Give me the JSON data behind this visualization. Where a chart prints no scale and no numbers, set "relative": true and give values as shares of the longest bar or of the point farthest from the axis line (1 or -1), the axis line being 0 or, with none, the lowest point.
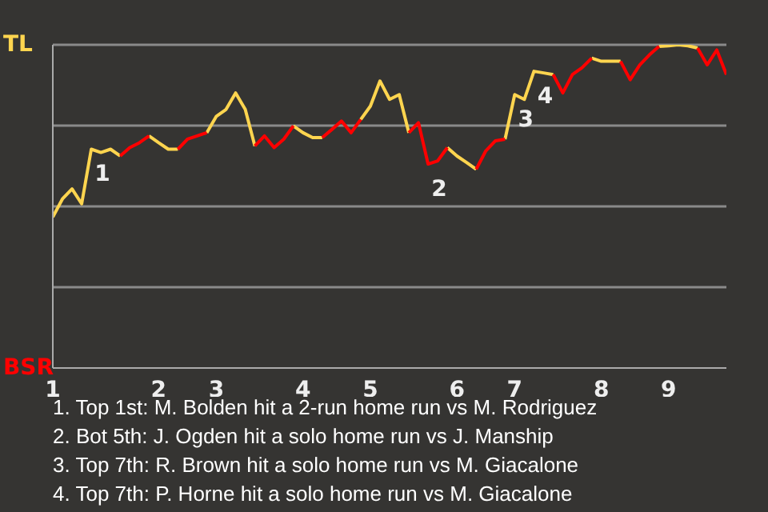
{
  "chart_data": {
    "type": "line",
    "relative": true,
    "categories": [
      "1",
      null,
      null,
      null,
      null,
      null,
      null,
      null,
      null,
      null,
      null,
      "2",
      null,
      null,
      null,
      null,
      null,
      "3",
      null,
      null,
      null,
      null,
      null,
      null,
      null,
      null,
      "4",
      null,
      null,
      null,
      null,
      null,
      null,
      "5",
      null,
      null,
      null,
      null,
      null,
      null,
      null,
      null,
      "6",
      null,
      null,
      null,
      null,
      null,
      "7",
      null,
      null,
      null,
      null,
      null,
      null,
      null,
      null,
      "8",
      null,
      null,
      null,
      null,
      null,
      null,
      "9",
      null,
      null,
      null,
      null,
      null,
      null
    ],
    "series": [
      {
        "name": "TL",
        "color": "#ffd54f",
        "values": [
          0.467,
          0.523,
          0.554,
          0.508,
          0.677,
          0.667,
          0.677,
          0.656,
          null,
          null,
          0.718,
          0.697,
          0.677,
          0.677,
          null,
          null,
          0.728,
          0.779,
          0.8,
          0.851,
          0.8,
          0.687,
          null,
          null,
          null,
          0.749,
          0.728,
          0.713,
          0.713,
          null,
          null,
          null,
          0.769,
          0.81,
          0.888,
          0.831,
          0.846,
          0.728,
          null,
          null,
          null,
          0.682,
          0.656,
          0.636,
          0.615,
          null,
          null,
          0.708,
          0.846,
          0.831,
          0.918,
          0.913,
          0.908,
          null,
          null,
          null,
          0.959,
          0.949,
          0.949,
          0.949,
          null,
          null,
          null,
          0.995,
          0.997,
          1,
          0.997,
          0.99,
          null,
          null,
          null
        ]
      },
      {
        "name": "BSR",
        "color": "#ff0000",
        "values": [
          null,
          null,
          null,
          null,
          null,
          null,
          null,
          0.656,
          0.682,
          0.697,
          0.718,
          null,
          null,
          0.677,
          0.708,
          0.718,
          0.728,
          null,
          null,
          null,
          null,
          0.687,
          0.718,
          0.682,
          0.708,
          0.749,
          null,
          null,
          0.713,
          0.738,
          0.764,
          0.728,
          0.769,
          null,
          null,
          null,
          null,
          0.728,
          0.759,
          0.631,
          0.641,
          0.682,
          null,
          null,
          0.615,
          0.672,
          0.703,
          0.708,
          null,
          null,
          null,
          null,
          0.908,
          0.851,
          0.908,
          0.929,
          0.959,
          null,
          null,
          0.949,
          0.892,
          0.938,
          0.969,
          0.995,
          null,
          null,
          null,
          0.99,
          0.938,
          0.984,
          0.908
        ]
      }
    ],
    "grid": "y",
    "legend": "left",
    "marker": "none",
    "line_style": "solid",
    "annotations": [
      {
        "text": "1",
        "y": 0.677
      },
      {
        "text": "2",
        "y": 0.631
      },
      {
        "text": "3",
        "y": 0.846
      },
      {
        "text": "4",
        "y": 0.918
      },
      "1. Top 1st: M. Bolden hit a 2-run home run vs M. Rodriguez",
      "2. Bot 5th: J. Ogden hit a solo home run vs J. Manship",
      "3. Top 7th: R. Brown hit a solo home run vs M. Giacalone",
      "4. Top 7th: P. Horne hit a solo home run vs M. Giacalone"
    ]
  }
}
